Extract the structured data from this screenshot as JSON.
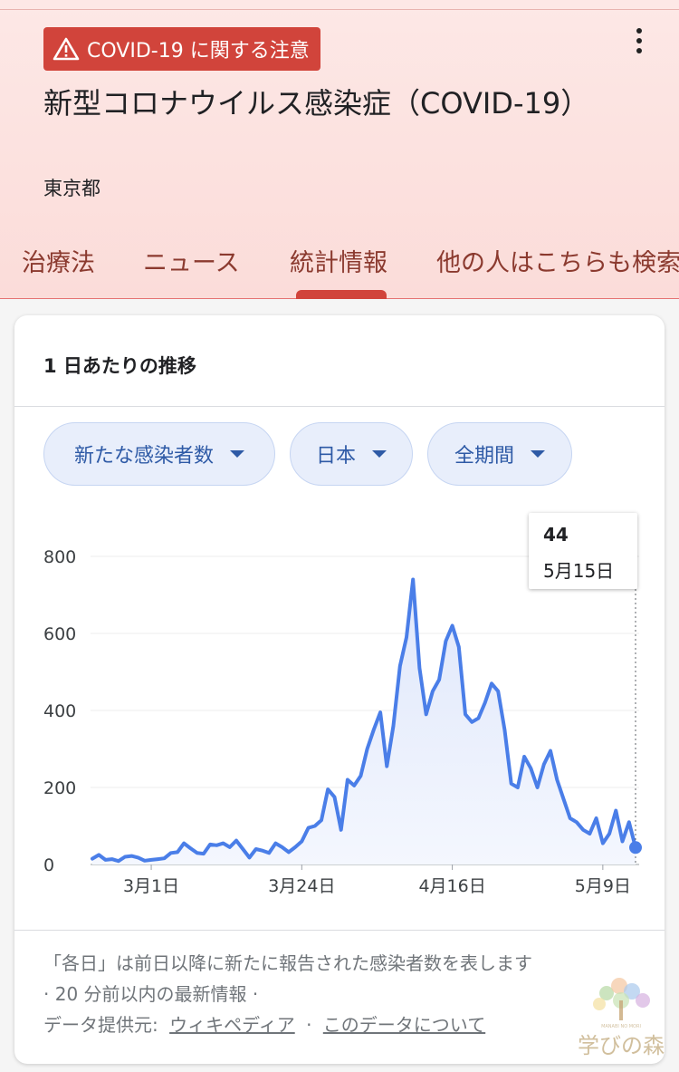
{
  "alert": {
    "label": "COVID-19 に関する注意"
  },
  "title": "新型コロナウイルス感染症（COVID-19）",
  "region": "東京都",
  "tabs": [
    {
      "label": "治療法"
    },
    {
      "label": "ニュース"
    },
    {
      "label": "統計情報"
    },
    {
      "label": "他の人はこちらも検索"
    }
  ],
  "card": {
    "title": "1 日あたりの推移",
    "filters": [
      {
        "label": "新たな感染者数"
      },
      {
        "label": "日本"
      },
      {
        "label": "全期間"
      }
    ]
  },
  "tooltip": {
    "value": "44",
    "date": "5月15日"
  },
  "footer": {
    "note": "「各日」は前日以降に新たに報告された感染者数を表します",
    "updated": "· 20 分前以内の最新情報 ·",
    "source_label": "データ提供元:",
    "source_link": "ウィキペディア",
    "separator": "·",
    "about_link": "このデータについて"
  },
  "watermark": {
    "text": "学びの森",
    "subtext": "MANABI NO MORI"
  },
  "colors": {
    "accent": "#d1443b",
    "line": "#4a7ee8",
    "chip_text": "#2e5aa6"
  },
  "chart_data": {
    "type": "area",
    "title": "",
    "xlabel": "",
    "ylabel": "",
    "ylim": [
      0,
      800
    ],
    "yticks": [
      0,
      200,
      400,
      600,
      800
    ],
    "x_tick_labels": [
      {
        "label": "3月1日",
        "index": 9
      },
      {
        "label": "3月24日",
        "index": 32
      },
      {
        "label": "4月16日",
        "index": 55
      },
      {
        "label": "5月9日",
        "index": 78
      }
    ],
    "x_start": "2月21日",
    "x_end": "5月15日",
    "grid": true,
    "series": [
      {
        "name": "",
        "values": [
          15,
          25,
          12,
          14,
          9,
          20,
          22,
          18,
          10,
          12,
          14,
          16,
          30,
          32,
          55,
          42,
          30,
          28,
          52,
          50,
          55,
          45,
          62,
          40,
          18,
          40,
          36,
          30,
          55,
          45,
          32,
          45,
          60,
          95,
          100,
          115,
          195,
          175,
          90,
          220,
          205,
          230,
          300,
          350,
          395,
          255,
          360,
          515,
          590,
          740,
          510,
          390,
          450,
          480,
          580,
          620,
          565,
          390,
          370,
          380,
          420,
          470,
          450,
          350,
          210,
          200,
          280,
          250,
          200,
          260,
          295,
          220,
          170,
          120,
          110,
          90,
          80,
          120,
          55,
          80,
          140,
          60,
          110,
          44
        ]
      }
    ],
    "highlight": {
      "value": 44,
      "label": "5月15日"
    }
  }
}
